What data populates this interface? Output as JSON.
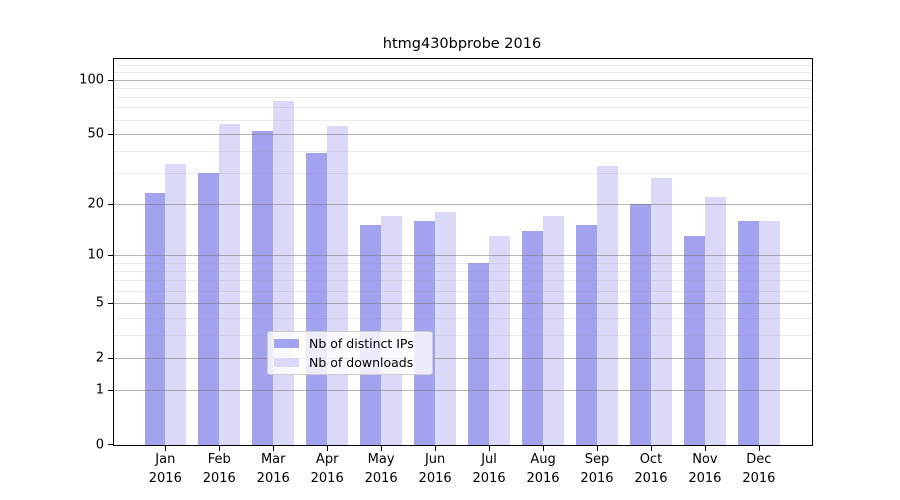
{
  "title": "htmg430bprobe 2016",
  "chart_data": {
    "type": "bar",
    "title": "htmg430bprobe 2016",
    "xlabel": "",
    "ylabel": "",
    "yscale": "log1p",
    "ylim": [
      0,
      130
    ],
    "grid": true,
    "legend_position": "bottom-center",
    "categories": [
      "Jan",
      "Feb",
      "Mar",
      "Apr",
      "May",
      "Jun",
      "Jul",
      "Aug",
      "Sep",
      "Oct",
      "Nov",
      "Dec"
    ],
    "year_label": "2016",
    "series": [
      {
        "name": "Nb of distinct IPs",
        "color": "#a2a2ef",
        "values": [
          23,
          30,
          52,
          39,
          15,
          16,
          9,
          14,
          15,
          20,
          13,
          16
        ]
      },
      {
        "name": "Nb of downloads",
        "color": "#dadaf8",
        "values": [
          34,
          57,
          76,
          55,
          17,
          18,
          13,
          17,
          33,
          28,
          22,
          16
        ]
      }
    ],
    "yticks": [
      0,
      1,
      2,
      5,
      10,
      20,
      50,
      100
    ],
    "ytick_labels": [
      "0",
      "1",
      "2",
      "5",
      "10",
      "20",
      "50",
      "100"
    ],
    "minor_gridline_values": [
      3,
      4,
      6,
      7,
      8,
      9,
      30,
      40,
      60,
      70,
      80,
      90,
      110,
      120
    ]
  }
}
